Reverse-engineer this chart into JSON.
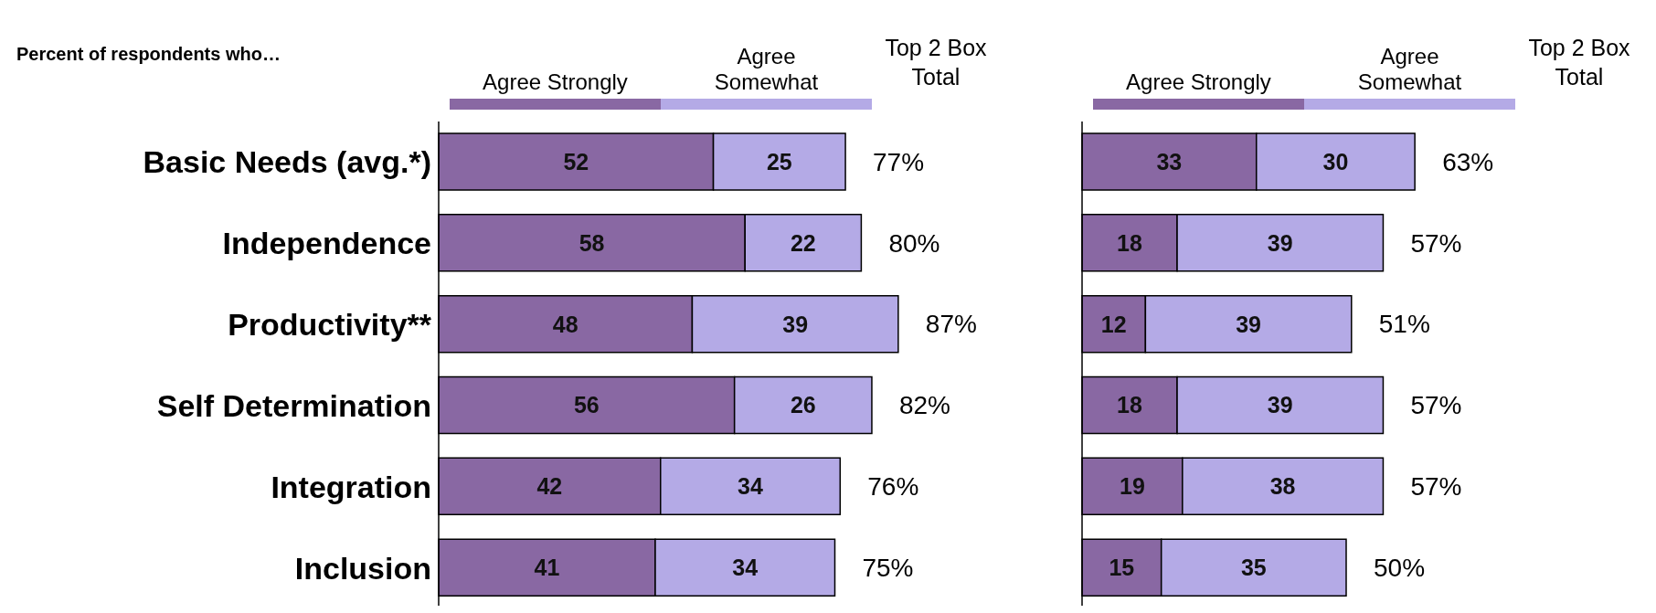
{
  "chart_data": [
    {
      "type": "bar",
      "orientation": "horizontal",
      "stacked": true,
      "title": "Percent of respondents who…",
      "categories": [
        "Basic Needs (avg.*)",
        "Independence",
        "Productivity**",
        "Self Determination",
        "Integration",
        "Inclusion"
      ],
      "series": [
        {
          "name": "Agree Strongly",
          "color": "#8968a3",
          "values": [
            52,
            58,
            48,
            56,
            42,
            41
          ]
        },
        {
          "name": "Agree Somewhat",
          "color": "#b4aae6",
          "values": [
            25,
            22,
            39,
            26,
            34,
            34
          ]
        }
      ],
      "data_labels": true,
      "totals": [
        "77%",
        "80%",
        "87%",
        "82%",
        "76%",
        "75%"
      ],
      "annotations": [
        "Top 2 Box Total"
      ],
      "legend": "top",
      "tick_labels": "y"
    },
    {
      "type": "bar",
      "orientation": "horizontal",
      "stacked": true,
      "categories": [
        null,
        null,
        null,
        null,
        null,
        null
      ],
      "series": [
        {
          "name": "Agree Strongly",
          "color": "#8968a3",
          "values": [
            33,
            18,
            12,
            18,
            19,
            15
          ]
        },
        {
          "name": "Agree Somewhat",
          "color": "#b4aae6",
          "values": [
            30,
            39,
            39,
            39,
            38,
            35
          ]
        }
      ],
      "data_labels": true,
      "totals": [
        "63%",
        "57%",
        "51%",
        "57%",
        "57%",
        "50%"
      ],
      "annotations": [
        "Top 2 Box Total"
      ],
      "legend": "top",
      "tick_labels": false
    }
  ]
}
